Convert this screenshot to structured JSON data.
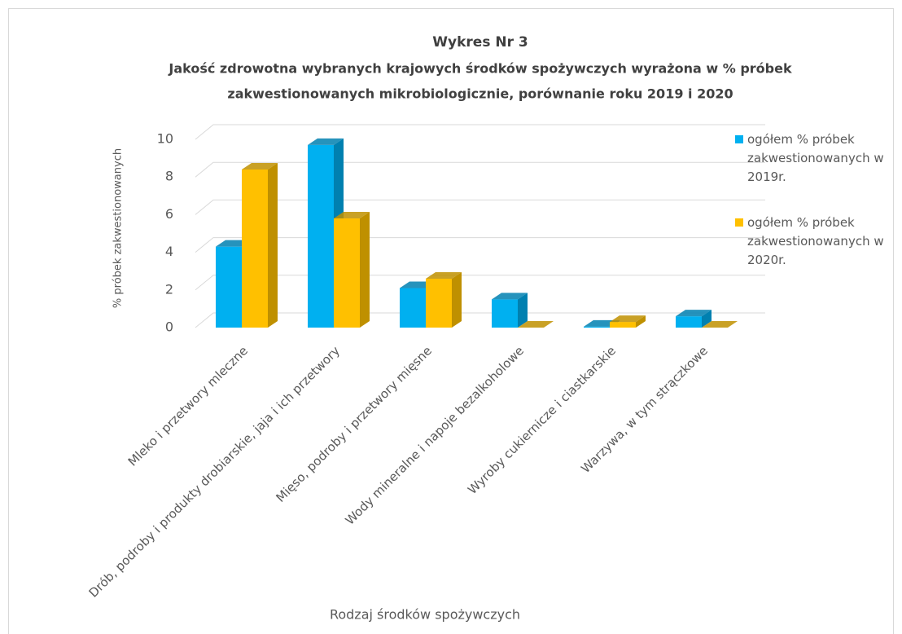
{
  "chart_data": {
    "type": "bar3d",
    "title": "Wykres Nr 3",
    "subtitle": [
      "Jakość zdrowotna wybranych krajowych środków spożywczych wyrażona w % próbek",
      "zakwestionowanych mikrobiologicznie, porównanie roku 2019 i 2020"
    ],
    "y_label": "% próbek zakwestionowanych",
    "x_label": "Rodzaj środków spożywczych",
    "categories": [
      "Mleko i przetwory mleczne",
      "Drób, podroby i produkty drobiarskie, jaja i ich przetwory",
      "Mięso, podroby i przetwory mięsne",
      "Wody mineralne i napoje bezalkoholowe",
      "Wyroby cukiernicze i ciastkarskie",
      "Warzywa, w tym strączkowe"
    ],
    "series": [
      {
        "name": "ogółem % próbek zakwestionowanych w 2019r.",
        "color": "#00b0f0",
        "side": "#0080b0",
        "values": [
          4.3,
          9.7,
          2.1,
          1.5,
          0.05,
          0.6
        ]
      },
      {
        "name": "ogółem % próbek zakwestionowanych w 2020r.",
        "color": "#ffc000",
        "side": "#bf9000",
        "values": [
          8.4,
          5.8,
          2.6,
          0,
          0.3,
          0
        ]
      }
    ],
    "ylim": [
      0,
      10
    ],
    "yticks": [
      0,
      2,
      4,
      6,
      8,
      10
    ],
    "grid": true,
    "legend": "right"
  }
}
